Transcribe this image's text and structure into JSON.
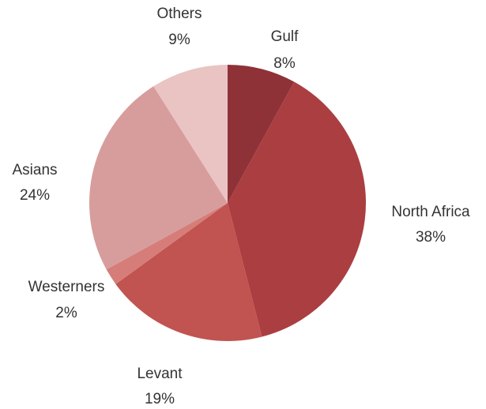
{
  "chart_data": {
    "type": "pie",
    "start_angle_deg": 0,
    "direction": "clockwise",
    "legend": "none",
    "slices": [
      {
        "label": "Gulf",
        "value": 8,
        "value_label": "8%",
        "color": "#8e3238"
      },
      {
        "label": "North Africa",
        "value": 38,
        "value_label": "38%",
        "color": "#aa3e40"
      },
      {
        "label": "Levant",
        "value": 19,
        "value_label": "19%",
        "color": "#c15350"
      },
      {
        "label": "Westerners",
        "value": 2,
        "value_label": "2%",
        "color": "#d67d79"
      },
      {
        "label": "Asians",
        "value": 24,
        "value_label": "24%",
        "color": "#d79d9c"
      },
      {
        "label": "Others",
        "value": 9,
        "value_label": "9%",
        "color": "#e9c4c3"
      }
    ]
  }
}
